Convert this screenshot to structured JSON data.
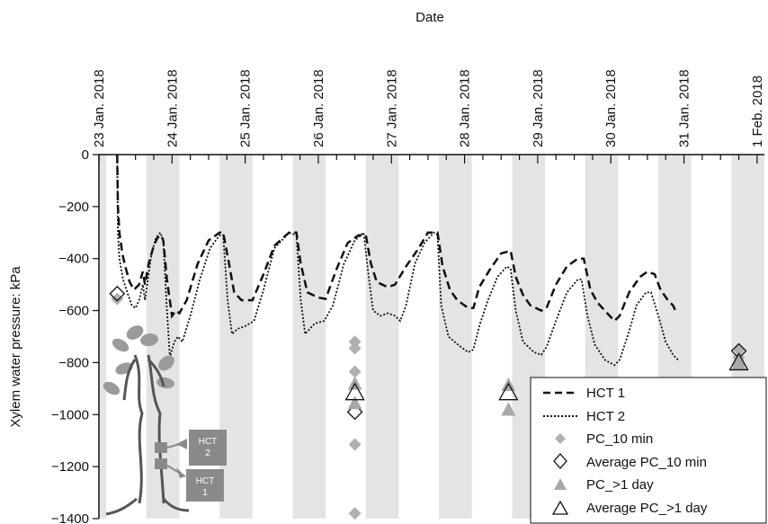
{
  "chart_data": {
    "type": "line",
    "xlabel": "Date",
    "ylabel": "Xylem water pressure: kPa",
    "x_axis_position": "top",
    "x_tick_labels": [
      "23 Jan. 2018",
      "24 Jan. 2018",
      "25 Jan. 2018",
      "26 Jan. 2018",
      "27 Jan. 2018",
      "28 Jan. 2018",
      "29 Jan. 2018",
      "30 Jan. 2018",
      "31 Jan. 2018",
      "1 Feb. 2018"
    ],
    "xlim": [
      0,
      9.1
    ],
    "ylim": [
      -1400,
      0
    ],
    "y_ticks": [
      0,
      -200,
      -400,
      -600,
      -800,
      -1000,
      -1200,
      -1400
    ],
    "y_tick_labels": [
      "0",
      "−200",
      "−400",
      "−600",
      "−800",
      "−1000",
      "−1200",
      "−1400"
    ],
    "night_bands": [
      [
        0.0,
        0.1
      ],
      [
        0.65,
        1.1
      ],
      [
        1.65,
        2.1
      ],
      [
        2.65,
        3.1
      ],
      [
        3.65,
        4.1
      ],
      [
        4.65,
        5.1
      ],
      [
        5.65,
        6.1
      ],
      [
        6.65,
        7.1
      ],
      [
        7.65,
        8.1
      ],
      [
        8.65,
        9.1
      ]
    ],
    "legend_position": "bottom-right",
    "series": [
      {
        "name": "HCT 1",
        "style": "dashed",
        "color": "#111111",
        "points": [
          [
            0.25,
            0
          ],
          [
            0.26,
            -200
          ],
          [
            0.28,
            -300
          ],
          [
            0.32,
            -380
          ],
          [
            0.36,
            -430
          ],
          [
            0.42,
            -490
          ],
          [
            0.48,
            -520
          ],
          [
            0.55,
            -500
          ],
          [
            0.6,
            -450
          ],
          [
            0.63,
            -500
          ],
          [
            0.68,
            -420
          ],
          [
            0.75,
            -350
          ],
          [
            0.8,
            -320
          ],
          [
            0.85,
            -310
          ],
          [
            0.88,
            -330
          ],
          [
            0.93,
            -480
          ],
          [
            1.0,
            -620
          ],
          [
            1.05,
            -600
          ],
          [
            1.1,
            -610
          ],
          [
            1.2,
            -560
          ],
          [
            1.35,
            -420
          ],
          [
            1.5,
            -330
          ],
          [
            1.65,
            -300
          ],
          [
            1.7,
            -300
          ],
          [
            1.78,
            -420
          ],
          [
            1.85,
            -530
          ],
          [
            1.95,
            -560
          ],
          [
            2.1,
            -560
          ],
          [
            2.25,
            -460
          ],
          [
            2.4,
            -350
          ],
          [
            2.6,
            -300
          ],
          [
            2.7,
            -300
          ],
          [
            2.76,
            -420
          ],
          [
            2.85,
            -530
          ],
          [
            3.0,
            -550
          ],
          [
            3.1,
            -555
          ],
          [
            3.25,
            -440
          ],
          [
            3.4,
            -340
          ],
          [
            3.55,
            -310
          ],
          [
            3.65,
            -310
          ],
          [
            3.72,
            -420
          ],
          [
            3.8,
            -490
          ],
          [
            3.95,
            -510
          ],
          [
            4.05,
            -500
          ],
          [
            4.2,
            -430
          ],
          [
            4.35,
            -370
          ],
          [
            4.5,
            -300
          ],
          [
            4.63,
            -300
          ],
          [
            4.7,
            -430
          ],
          [
            4.8,
            -520
          ],
          [
            4.9,
            -560
          ],
          [
            5.05,
            -590
          ],
          [
            5.12,
            -590
          ],
          [
            5.2,
            -510
          ],
          [
            5.35,
            -440
          ],
          [
            5.5,
            -380
          ],
          [
            5.63,
            -370
          ],
          [
            5.7,
            -470
          ],
          [
            5.8,
            -540
          ],
          [
            5.9,
            -580
          ],
          [
            6.05,
            -600
          ],
          [
            6.12,
            -590
          ],
          [
            6.25,
            -500
          ],
          [
            6.4,
            -430
          ],
          [
            6.55,
            -400
          ],
          [
            6.63,
            -400
          ],
          [
            6.72,
            -520
          ],
          [
            6.82,
            -570
          ],
          [
            6.95,
            -610
          ],
          [
            7.05,
            -640
          ],
          [
            7.12,
            -620
          ],
          [
            7.25,
            -530
          ],
          [
            7.4,
            -470
          ],
          [
            7.5,
            -450
          ],
          [
            7.6,
            -460
          ],
          [
            7.68,
            -520
          ],
          [
            7.78,
            -560
          ],
          [
            7.85,
            -580
          ],
          [
            7.9,
            -610
          ]
        ]
      },
      {
        "name": "HCT 2",
        "style": "dotted",
        "color": "#111111",
        "points": [
          [
            0.25,
            0
          ],
          [
            0.26,
            -300
          ],
          [
            0.28,
            -400
          ],
          [
            0.33,
            -480
          ],
          [
            0.4,
            -540
          ],
          [
            0.45,
            -580
          ],
          [
            0.5,
            -590
          ],
          [
            0.55,
            -560
          ],
          [
            0.6,
            -500
          ],
          [
            0.63,
            -560
          ],
          [
            0.67,
            -480
          ],
          [
            0.72,
            -380
          ],
          [
            0.78,
            -320
          ],
          [
            0.84,
            -300
          ],
          [
            0.88,
            -330
          ],
          [
            0.92,
            -550
          ],
          [
            0.97,
            -780
          ],
          [
            1.03,
            -720
          ],
          [
            1.08,
            -700
          ],
          [
            1.14,
            -720
          ],
          [
            1.25,
            -620
          ],
          [
            1.38,
            -480
          ],
          [
            1.52,
            -360
          ],
          [
            1.65,
            -310
          ],
          [
            1.7,
            -310
          ],
          [
            1.76,
            -560
          ],
          [
            1.82,
            -690
          ],
          [
            1.9,
            -670
          ],
          [
            2.0,
            -660
          ],
          [
            2.12,
            -640
          ],
          [
            2.25,
            -520
          ],
          [
            2.4,
            -360
          ],
          [
            2.6,
            -300
          ],
          [
            2.7,
            -310
          ],
          [
            2.76,
            -560
          ],
          [
            2.82,
            -690
          ],
          [
            2.95,
            -650
          ],
          [
            3.08,
            -640
          ],
          [
            3.2,
            -580
          ],
          [
            3.35,
            -420
          ],
          [
            3.5,
            -330
          ],
          [
            3.62,
            -300
          ],
          [
            3.68,
            -450
          ],
          [
            3.75,
            -600
          ],
          [
            3.85,
            -620
          ],
          [
            3.95,
            -610
          ],
          [
            4.05,
            -620
          ],
          [
            4.12,
            -640
          ],
          [
            4.2,
            -580
          ],
          [
            4.32,
            -420
          ],
          [
            4.45,
            -340
          ],
          [
            4.58,
            -300
          ],
          [
            4.63,
            -310
          ],
          [
            4.68,
            -580
          ],
          [
            4.78,
            -700
          ],
          [
            4.95,
            -740
          ],
          [
            5.05,
            -760
          ],
          [
            5.12,
            -750
          ],
          [
            5.2,
            -660
          ],
          [
            5.32,
            -560
          ],
          [
            5.45,
            -470
          ],
          [
            5.58,
            -430
          ],
          [
            5.63,
            -440
          ],
          [
            5.7,
            -600
          ],
          [
            5.8,
            -720
          ],
          [
            5.95,
            -760
          ],
          [
            6.05,
            -770
          ],
          [
            6.12,
            -740
          ],
          [
            6.25,
            -640
          ],
          [
            6.4,
            -530
          ],
          [
            6.55,
            -480
          ],
          [
            6.6,
            -480
          ],
          [
            6.68,
            -620
          ],
          [
            6.78,
            -730
          ],
          [
            6.92,
            -790
          ],
          [
            7.05,
            -810
          ],
          [
            7.12,
            -790
          ],
          [
            7.25,
            -680
          ],
          [
            7.35,
            -580
          ],
          [
            7.48,
            -530
          ],
          [
            7.55,
            -530
          ],
          [
            7.65,
            -620
          ],
          [
            7.75,
            -720
          ],
          [
            7.85,
            -770
          ],
          [
            7.92,
            -790
          ]
        ]
      },
      {
        "name": "PC_10 min",
        "style": "marker-filled-diamond",
        "color": "#b0b0b0",
        "points": [
          [
            0.25,
            -555
          ],
          [
            3.5,
            -720
          ],
          [
            3.5,
            -745
          ],
          [
            3.5,
            -835
          ],
          [
            3.5,
            -1115
          ],
          [
            3.5,
            -1380
          ],
          [
            8.75,
            -750
          ],
          [
            8.75,
            -780
          ]
        ]
      },
      {
        "name": "Average PC_10 min",
        "style": "marker-open-diamond",
        "color": "#111111",
        "points": [
          [
            0.25,
            -535
          ],
          [
            3.5,
            -990
          ],
          [
            8.75,
            -755
          ]
        ]
      },
      {
        "name": "PC_>1 day",
        "style": "marker-filled-triangle",
        "color": "#a8a8a8",
        "points": [
          [
            3.5,
            -880
          ],
          [
            3.5,
            -955
          ],
          [
            5.6,
            -885
          ],
          [
            5.6,
            -980
          ],
          [
            8.75,
            -790
          ],
          [
            8.75,
            -805
          ]
        ]
      },
      {
        "name": "Average PC_>1 day",
        "style": "marker-open-triangle",
        "color": "#111111",
        "points": [
          [
            3.5,
            -915
          ],
          [
            5.6,
            -915
          ],
          [
            8.75,
            -800
          ]
        ]
      }
    ],
    "annotations": [
      {
        "label": "HCT 2",
        "note": "sensor tag on tree illustration"
      },
      {
        "label": "HCT 1",
        "note": "sensor tag on tree illustration"
      }
    ]
  },
  "legend": {
    "entries": [
      "HCT 1",
      "HCT 2",
      "PC_10 min",
      "Average PC_10 min",
      "PC_>1 day",
      "Average PC_>1 day"
    ]
  },
  "illustration": {
    "hct2_label": "HCT\n2",
    "hct1_label": "HCT\n1"
  }
}
